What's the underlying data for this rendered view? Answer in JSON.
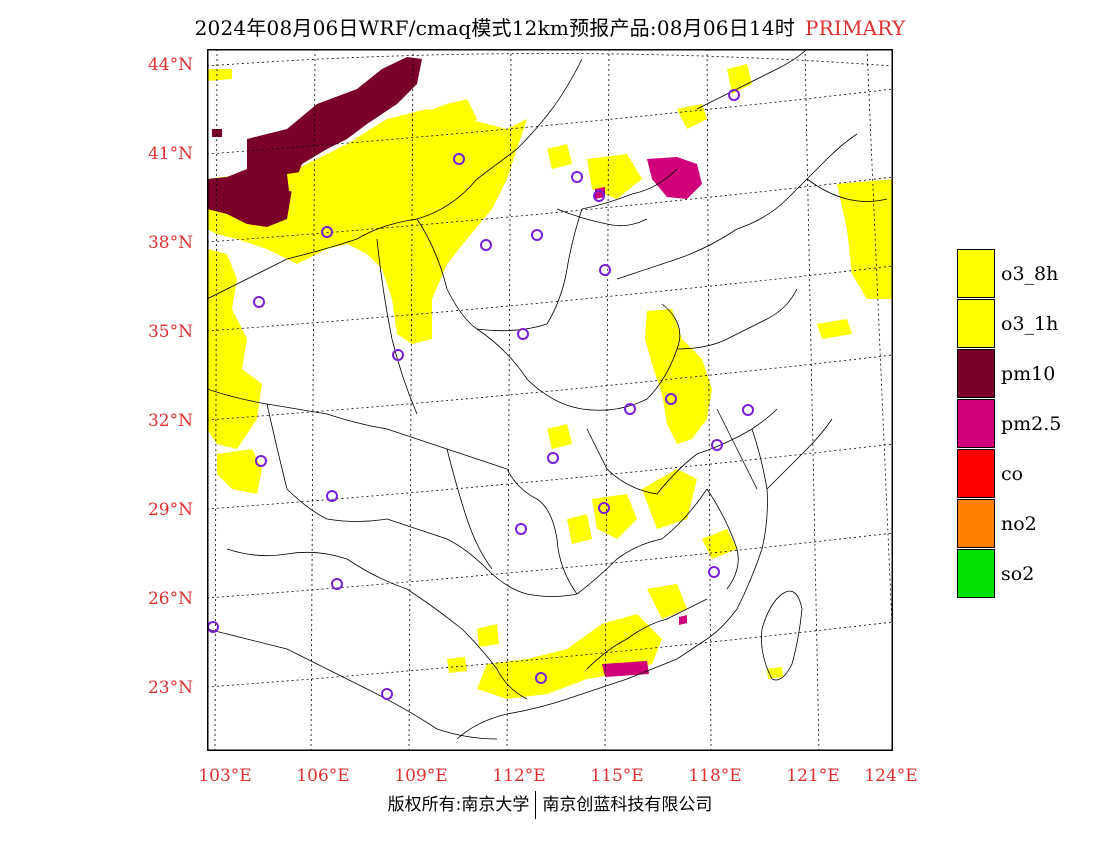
{
  "title": {
    "text": "2024年08月06日WRF/cmaq模式12km预报产品:08月06日14时",
    "tag": "PRIMARY"
  },
  "axes": {
    "lat_labels": [
      "44°N",
      "41°N",
      "38°N",
      "35°N",
      "32°N",
      "29°N",
      "26°N",
      "23°N"
    ],
    "lon_labels": [
      "103°E",
      "106°E",
      "109°E",
      "112°E",
      "115°E",
      "118°E",
      "121°E",
      "124°E"
    ]
  },
  "legend": {
    "items": [
      {
        "label": "o3_8h",
        "color": "#ffff00"
      },
      {
        "label": "o3_1h",
        "color": "#ffff00"
      },
      {
        "label": "pm10",
        "color": "#7a0028"
      },
      {
        "label": "pm2.5",
        "color": "#d0007a"
      },
      {
        "label": "co",
        "color": "#ff0000"
      },
      {
        "label": "no2",
        "color": "#ff7f00"
      },
      {
        "label": "so2",
        "color": "#00e000"
      }
    ]
  },
  "copyright": {
    "left": "版权所有:南京大学",
    "right": "南京创蓝科技有限公司"
  },
  "colors": {
    "axis_label": "#e03030",
    "station_marker": "#7a1fd8"
  }
}
